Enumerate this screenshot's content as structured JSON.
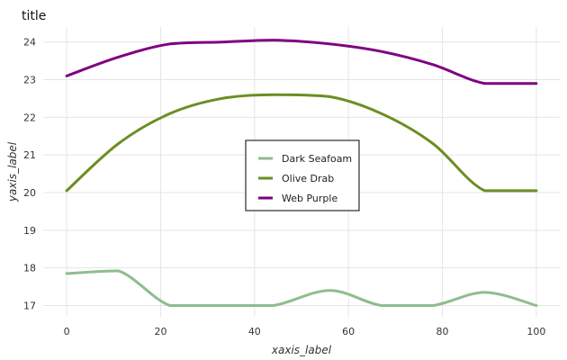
{
  "chart_data": {
    "type": "line",
    "title": "title",
    "xlabel": "xaxis_label",
    "ylabel": "yaxis_label",
    "xlim": [
      -5,
      105
    ],
    "ylim": [
      16.7,
      24.4
    ],
    "x_ticks": [
      0,
      20,
      40,
      60,
      80,
      100
    ],
    "y_ticks": [
      17,
      18,
      19,
      20,
      21,
      22,
      23,
      24
    ],
    "grid": true,
    "legend_position": "center",
    "x": [
      0,
      11,
      22,
      33,
      44,
      56,
      67,
      78,
      89,
      100
    ],
    "series": [
      {
        "name": "Dark Seafoam",
        "color": "#8fbc8f",
        "values": [
          17.85,
          17.92,
          17.0,
          17.0,
          17.0,
          17.4,
          17.0,
          17.0,
          17.35,
          17.0
        ]
      },
      {
        "name": "Olive Drab",
        "color": "#6b8e23",
        "values": [
          20.05,
          21.3,
          22.1,
          22.5,
          22.6,
          22.55,
          22.1,
          21.3,
          20.05,
          20.05
        ]
      },
      {
        "name": "Web Purple",
        "color": "#800080",
        "values": [
          23.1,
          23.6,
          23.95,
          24.0,
          24.05,
          23.95,
          23.75,
          23.4,
          22.9,
          22.9
        ]
      }
    ]
  }
}
